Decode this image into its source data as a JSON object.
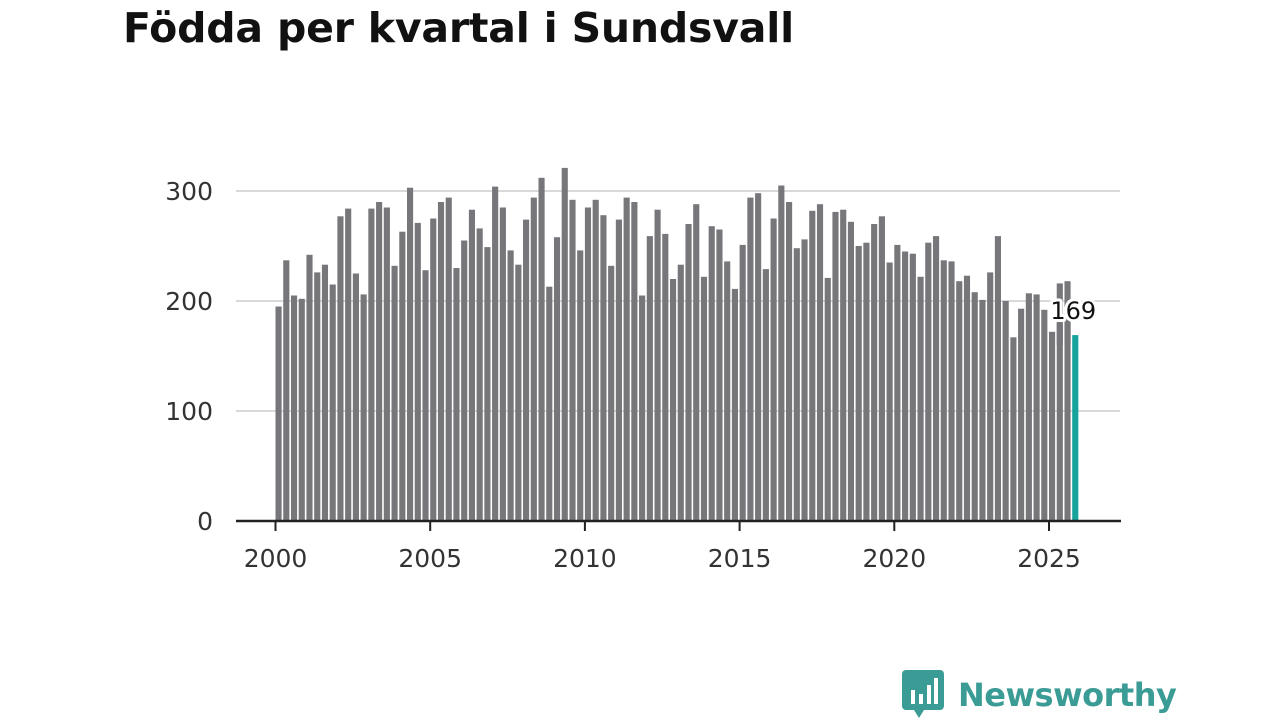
{
  "chart_data": {
    "type": "bar",
    "title": "Födda per kvartal i Sundsvall",
    "xlabel": "",
    "ylabel": "",
    "x_start_year": 2000,
    "points_per_year": 4,
    "x_ticks": [
      "2000",
      "2005",
      "2010",
      "2015",
      "2020",
      "2025"
    ],
    "y_ticks": [
      "0",
      "100",
      "200",
      "300"
    ],
    "ylim": [
      0,
      330
    ],
    "grid": true,
    "values": [
      195,
      237,
      205,
      202,
      242,
      226,
      233,
      215,
      277,
      284,
      225,
      206,
      284,
      290,
      285,
      232,
      263,
      303,
      271,
      228,
      275,
      290,
      294,
      230,
      255,
      283,
      266,
      249,
      304,
      285,
      246,
      233,
      274,
      294,
      312,
      213,
      258,
      321,
      292,
      246,
      285,
      292,
      278,
      232,
      274,
      294,
      290,
      205,
      259,
      283,
      261,
      220,
      233,
      270,
      288,
      222,
      268,
      265,
      236,
      211,
      251,
      294,
      298,
      229,
      275,
      305,
      290,
      248,
      256,
      282,
      288,
      221,
      281,
      283,
      272,
      250,
      253,
      270,
      277,
      235,
      251,
      245,
      243,
      222,
      253,
      259,
      237,
      236,
      218,
      223,
      208,
      201,
      226,
      259,
      200,
      167,
      193,
      207,
      206,
      192,
      172,
      180,
      182,
      169
    ],
    "extra_bars": [
      216,
      218
    ],
    "highlight_index": 103,
    "highlight_label": "169",
    "bar_color": "#77767b",
    "highlight_color": "#16a39c",
    "grid_color": "#d9d9d9",
    "axis_color": "#222222"
  },
  "brand": {
    "name": "Newsworthy",
    "color": "#3b9b95"
  }
}
